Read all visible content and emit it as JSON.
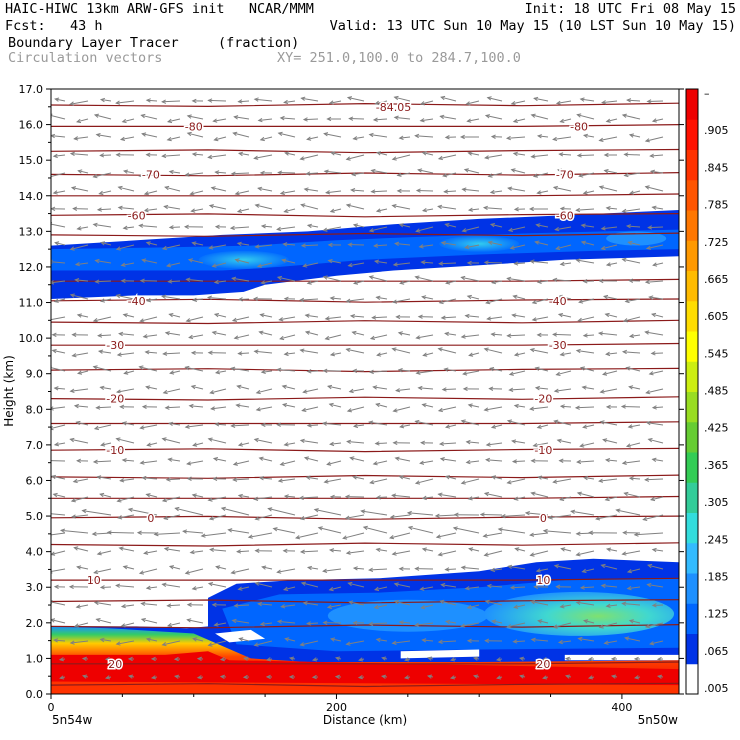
{
  "header": {
    "line1_left": "HAIC-HIWC 13km ARW-GFS init   NCAR/MMM",
    "line1_right": "Init: 18 UTC Fri 08 May 15",
    "line2_left": "Fcst:   43 h",
    "line2_right": "Valid: 13 UTC Sun 10 May 15 (10 LST Sun 10 May 15)",
    "line3_field": "Boundary Layer Tracer",
    "line3_units": "(fraction)",
    "line4_field": "Circulation vectors",
    "line4_xy": "XY= 251.0,100.0 to 284.7,100.0"
  },
  "colors": {
    "contour": "#8b1a1a",
    "vector": "#808080",
    "colorbar": [
      "#ffffff",
      "#0033e6",
      "#0066ff",
      "#1e90ff",
      "#33bbff",
      "#33dddd",
      "#33cc99",
      "#33cc55",
      "#66cc33",
      "#99dd22",
      "#ccee11",
      "#ffff00",
      "#ffdd00",
      "#ffbb00",
      "#ff9900",
      "#ff7700",
      "#ff5500",
      "#ff3300",
      "#ff1100",
      "#ee0000"
    ]
  },
  "chart_data": {
    "type": "heatmap",
    "title": "Boundary Layer Tracer",
    "xlabel": "Distance (km)",
    "ylabel": "Height (km)",
    "xlim": [
      0,
      440
    ],
    "ylim": [
      0,
      17
    ],
    "x_ticks": [
      "0",
      "200",
      "400"
    ],
    "y_ticks": [
      "0.0",
      "1.0",
      "2.0",
      "3.0",
      "4.0",
      "5.0",
      "6.0",
      "7.0",
      "8.0",
      "9.0",
      "10.0",
      "11.0",
      "12.0",
      "13.0",
      "14.0",
      "15.0",
      "16.0",
      "17.0"
    ],
    "endpoints": {
      "left": "5n54w",
      "right": "5n50w"
    },
    "colorbar_labels": [
      ".005",
      ".065",
      ".125",
      ".185",
      ".245",
      ".305",
      ".365",
      ".425",
      ".485",
      ".545",
      ".605",
      ".665",
      ".725",
      ".785",
      ".845",
      ".905",
      "–"
    ],
    "contour_labels": [
      {
        "text": "-84.05",
        "x": 240,
        "y": 16.5
      },
      {
        "text": "-80",
        "x": 100,
        "y": 15.95
      },
      {
        "text": "-80",
        "x": 370,
        "y": 15.95
      },
      {
        "text": "-70",
        "x": 70,
        "y": 14.6
      },
      {
        "text": "-70",
        "x": 360,
        "y": 14.6
      },
      {
        "text": "-60",
        "x": 60,
        "y": 13.45
      },
      {
        "text": "-60",
        "x": 360,
        "y": 13.45
      },
      {
        "text": "-40",
        "x": 60,
        "y": 11.05
      },
      {
        "text": "-40",
        "x": 355,
        "y": 11.05
      },
      {
        "text": "-30",
        "x": 45,
        "y": 9.8
      },
      {
        "text": "-30",
        "x": 355,
        "y": 9.8
      },
      {
        "text": "-20",
        "x": 45,
        "y": 8.3
      },
      {
        "text": "-20",
        "x": 345,
        "y": 8.3
      },
      {
        "text": "-10",
        "x": 45,
        "y": 6.85
      },
      {
        "text": "-10",
        "x": 345,
        "y": 6.85
      },
      {
        "text": "0",
        "x": 70,
        "y": 4.95
      },
      {
        "text": "0",
        "x": 345,
        "y": 4.95
      },
      {
        "text": "10",
        "x": 30,
        "y": 3.2
      },
      {
        "text": "10",
        "x": 345,
        "y": 3.2
      },
      {
        "text": "20",
        "x": 45,
        "y": 0.85
      },
      {
        "text": "20",
        "x": 345,
        "y": 0.85
      }
    ]
  }
}
